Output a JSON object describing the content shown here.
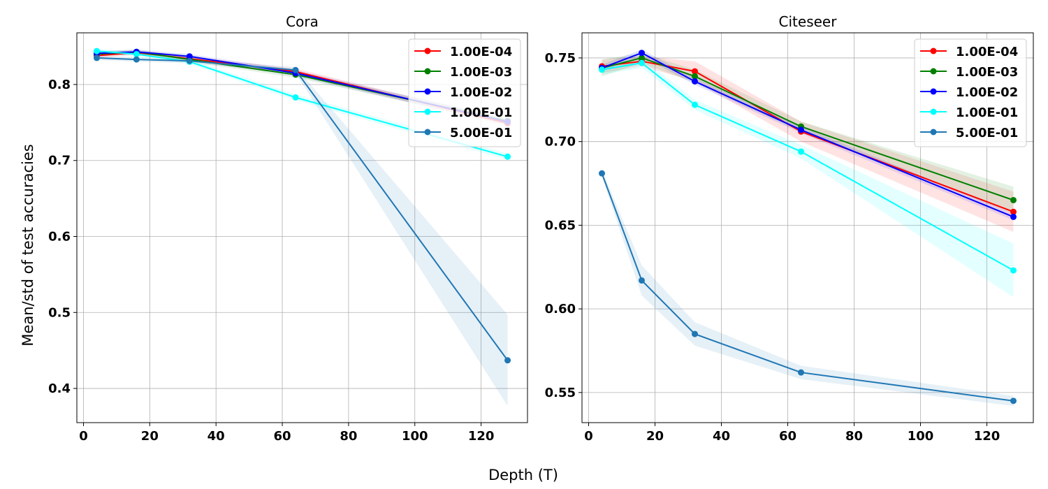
{
  "figure": {
    "xlabel": "Depth (T)",
    "ylabel": "Mean/std of test accuracies"
  },
  "chart_data": [
    {
      "type": "line",
      "title": "Cora",
      "xlim": [
        -2,
        134
      ],
      "ylim": [
        0.355,
        0.868
      ],
      "xticks": [
        0,
        20,
        40,
        60,
        80,
        100,
        120
      ],
      "yticks": [
        0.4,
        0.5,
        0.6,
        0.7,
        0.8
      ],
      "ytick_labels": [
        "0.4",
        "0.5",
        "0.6",
        "0.7",
        "0.8"
      ],
      "grid": true,
      "legend_position": "top-right",
      "x": [
        4,
        16,
        32,
        64,
        128
      ],
      "series": [
        {
          "name": "1.00E-04",
          "color": "#ff0000",
          "values": [
            0.838,
            0.842,
            0.834,
            0.817,
            0.749
          ],
          "std": [
            0.003,
            0.003,
            0.003,
            0.004,
            0.004
          ]
        },
        {
          "name": "1.00E-03",
          "color": "#008000",
          "values": [
            0.84,
            0.843,
            0.833,
            0.813,
            0.752
          ],
          "std": [
            0.003,
            0.003,
            0.003,
            0.004,
            0.004
          ]
        },
        {
          "name": "1.00E-02",
          "color": "#0000ff",
          "values": [
            0.841,
            0.843,
            0.837,
            0.815,
            0.751
          ],
          "std": [
            0.003,
            0.003,
            0.003,
            0.004,
            0.004
          ]
        },
        {
          "name": "1.00E-01",
          "color": "#00ffff",
          "values": [
            0.844,
            0.84,
            0.83,
            0.783,
            0.705
          ],
          "std": [
            0.003,
            0.003,
            0.003,
            0.004,
            0.004
          ]
        },
        {
          "name": "5.00E-01",
          "color": "#1f77b4",
          "values": [
            0.835,
            0.833,
            0.831,
            0.819,
            0.437
          ],
          "std": [
            0.003,
            0.003,
            0.003,
            0.004,
            0.06
          ]
        }
      ]
    },
    {
      "type": "line",
      "title": "Citeseer",
      "xlim": [
        -2,
        134
      ],
      "ylim": [
        0.532,
        0.765
      ],
      "xticks": [
        0,
        20,
        40,
        60,
        80,
        100,
        120
      ],
      "yticks": [
        0.55,
        0.6,
        0.65,
        0.7,
        0.75
      ],
      "ytick_labels": [
        "0.55",
        "0.60",
        "0.65",
        "0.70",
        "0.75"
      ],
      "grid": true,
      "legend_position": "top-right",
      "x": [
        4,
        16,
        32,
        64,
        128
      ],
      "series": [
        {
          "name": "1.00E-04",
          "color": "#ff0000",
          "values": [
            0.745,
            0.748,
            0.742,
            0.706,
            0.658
          ],
          "std": [
            0.004,
            0.003,
            0.006,
            0.006,
            0.012
          ]
        },
        {
          "name": "1.00E-03",
          "color": "#008000",
          "values": [
            0.744,
            0.75,
            0.739,
            0.709,
            0.665
          ],
          "std": [
            0.005,
            0.003,
            0.004,
            0.003,
            0.008
          ]
        },
        {
          "name": "1.00E-02",
          "color": "#0000ff",
          "values": [
            0.744,
            0.753,
            0.736,
            0.707,
            0.655
          ],
          "std": [
            0.002,
            0.002,
            0.002,
            0.002,
            0.002
          ]
        },
        {
          "name": "1.00E-01",
          "color": "#00ffff",
          "values": [
            0.743,
            0.747,
            0.722,
            0.694,
            0.623
          ],
          "std": [
            0.003,
            0.003,
            0.003,
            0.004,
            0.016
          ]
        },
        {
          "name": "5.00E-01",
          "color": "#1f77b4",
          "values": [
            0.681,
            0.617,
            0.585,
            0.562,
            0.545
          ],
          "std": [
            0.002,
            0.009,
            0.007,
            0.004,
            0.003
          ]
        }
      ]
    }
  ]
}
